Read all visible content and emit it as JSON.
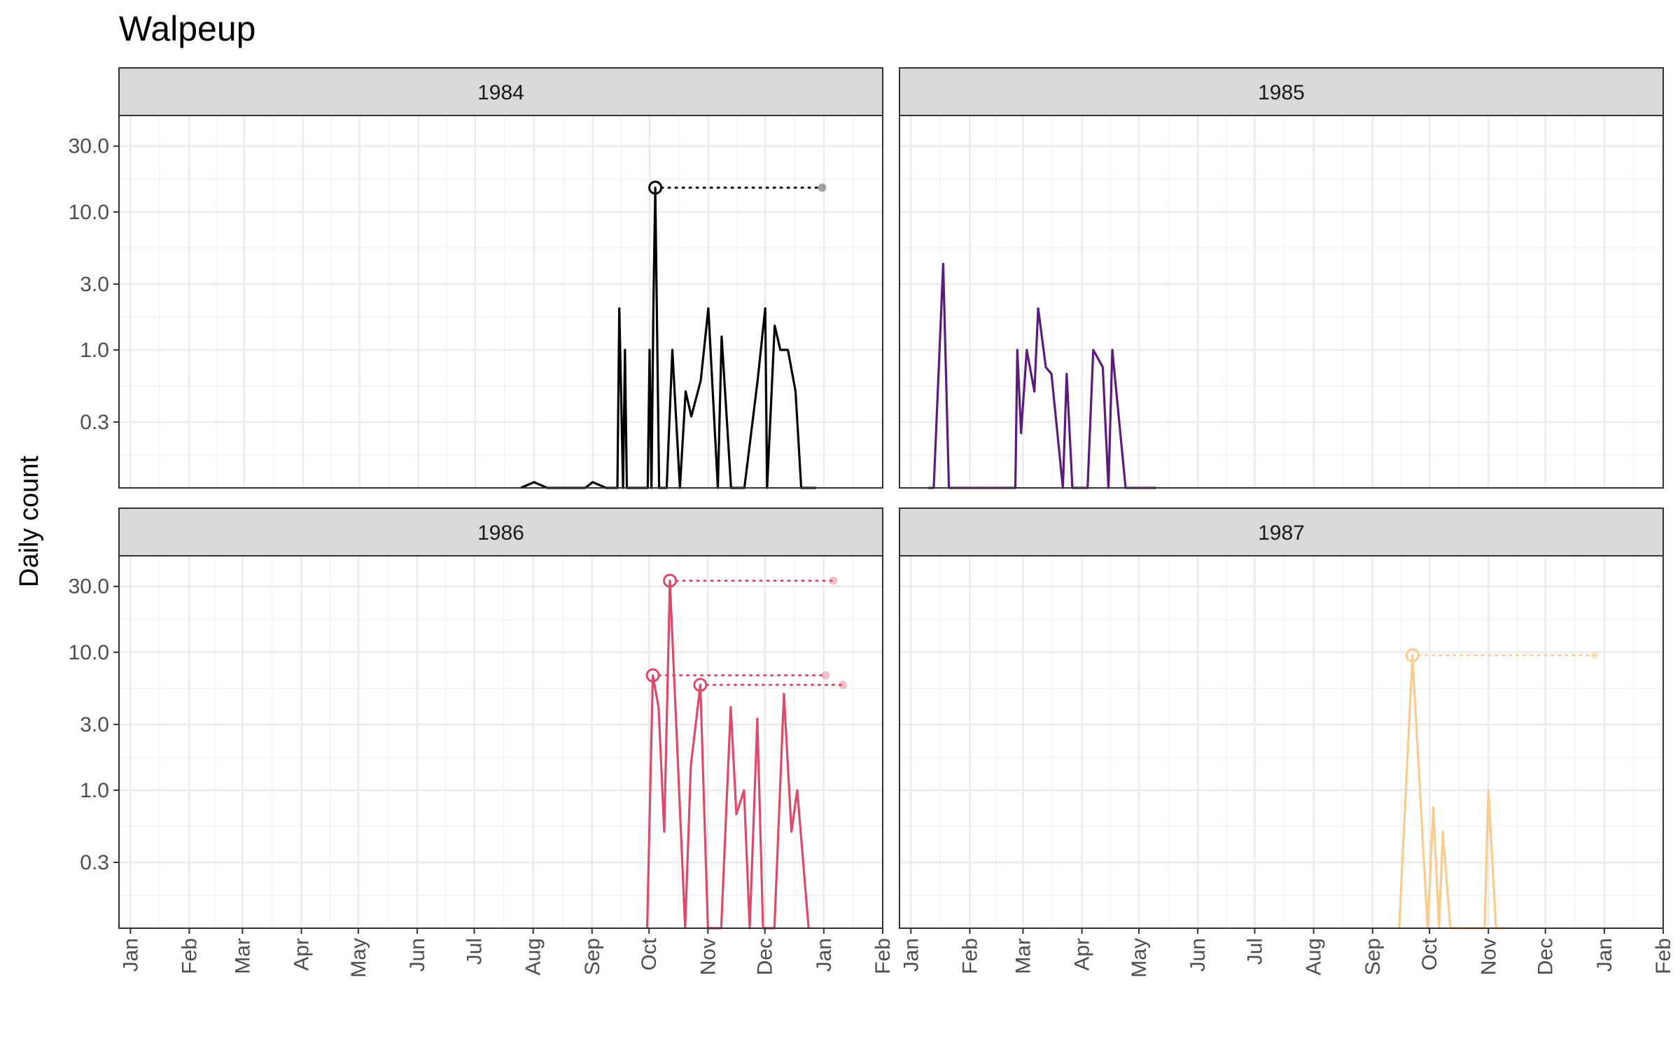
{
  "chart_data": {
    "type": "line",
    "title": "Walpeup",
    "ylabel": "Daily count",
    "xlabel": "",
    "y_scale": "log10",
    "y_range": [
      0.1,
      50
    ],
    "y_ticks": [
      "0.3",
      "1.0",
      "3.0",
      "10.0",
      "30.0"
    ],
    "y_tick_values": [
      0.3,
      1.0,
      3.0,
      10.0,
      30.0
    ],
    "x_range": [
      "Dec 26",
      "Feb 1 (next year)"
    ],
    "x_ticks": [
      "Jan",
      "Feb",
      "Mar",
      "Apr",
      "May",
      "Jun",
      "Jul",
      "Aug",
      "Sep",
      "Oct",
      "Nov",
      "Dec",
      "Jan",
      "Feb"
    ],
    "grid": true,
    "legend": "none",
    "panels": [
      {
        "name": "1984",
        "color": "#000000",
        "series": [
          {
            "date": "1984-07-25",
            "value": 0.0
          },
          {
            "date": "1984-08-01",
            "value": 0.11
          },
          {
            "date": "1984-08-08",
            "value": 0.0
          },
          {
            "date": "1984-08-28",
            "value": 0.0
          },
          {
            "date": "1984-09-01",
            "value": 0.11
          },
          {
            "date": "1984-09-08",
            "value": 0.0
          },
          {
            "date": "1984-09-14",
            "value": 0.0
          },
          {
            "date": "1984-09-15",
            "value": 2.0
          },
          {
            "date": "1984-09-17",
            "value": 0.0
          },
          {
            "date": "1984-09-18",
            "value": 1.0
          },
          {
            "date": "1984-09-19",
            "value": 0.0
          },
          {
            "date": "1984-09-30",
            "value": 0.0
          },
          {
            "date": "1984-10-01",
            "value": 1.0
          },
          {
            "date": "1984-10-02",
            "value": 0.0
          },
          {
            "date": "1984-10-03",
            "value": 2.0
          },
          {
            "date": "1984-10-04",
            "value": 15.0
          },
          {
            "date": "1984-10-06",
            "value": 0.0
          },
          {
            "date": "1984-10-10",
            "value": 0.0
          },
          {
            "date": "1984-10-13",
            "value": 1.0
          },
          {
            "date": "1984-10-17",
            "value": 0.0
          },
          {
            "date": "1984-10-20",
            "value": 0.5
          },
          {
            "date": "1984-10-23",
            "value": 0.33
          },
          {
            "date": "1984-10-28",
            "value": 0.6
          },
          {
            "date": "1984-11-01",
            "value": 2.0
          },
          {
            "date": "1984-11-06",
            "value": 0.0
          },
          {
            "date": "1984-11-08",
            "value": 1.25
          },
          {
            "date": "1984-11-13",
            "value": 0.0
          },
          {
            "date": "1984-11-20",
            "value": 0.0
          },
          {
            "date": "1984-11-27",
            "value": 0.6
          },
          {
            "date": "1984-12-01",
            "value": 2.0
          },
          {
            "date": "1984-12-02",
            "value": 0.0
          },
          {
            "date": "1984-12-06",
            "value": 1.5
          },
          {
            "date": "1984-12-09",
            "value": 1.0
          },
          {
            "date": "1984-12-13",
            "value": 1.0
          },
          {
            "date": "1984-12-17",
            "value": 0.5
          },
          {
            "date": "1984-12-20",
            "value": 0.0
          },
          {
            "date": "1984-12-28",
            "value": 0.0
          }
        ],
        "peaks": [
          {
            "date": "1984-10-04",
            "value": 15.0,
            "end_date": "1984-12-31"
          }
        ]
      },
      {
        "name": "1985",
        "color": "#5c1a7a",
        "series": [
          {
            "date": "1985-01-10",
            "value": 0.0
          },
          {
            "date": "1985-01-13",
            "value": 0.0
          },
          {
            "date": "1985-01-18",
            "value": 4.2
          },
          {
            "date": "1985-01-21",
            "value": 0.0
          },
          {
            "date": "1985-02-25",
            "value": 0.0
          },
          {
            "date": "1985-02-26",
            "value": 1.0
          },
          {
            "date": "1985-02-28",
            "value": 0.25
          },
          {
            "date": "1985-03-03",
            "value": 1.0
          },
          {
            "date": "1985-03-07",
            "value": 0.5
          },
          {
            "date": "1985-03-09",
            "value": 2.0
          },
          {
            "date": "1985-03-13",
            "value": 0.75
          },
          {
            "date": "1985-03-16",
            "value": 0.67
          },
          {
            "date": "1985-03-22",
            "value": 0.0
          },
          {
            "date": "1985-03-24",
            "value": 0.67
          },
          {
            "date": "1985-03-27",
            "value": 0.0
          },
          {
            "date": "1985-04-04",
            "value": 0.0
          },
          {
            "date": "1985-04-07",
            "value": 1.0
          },
          {
            "date": "1985-04-12",
            "value": 0.75
          },
          {
            "date": "1985-04-15",
            "value": 0.0
          },
          {
            "date": "1985-04-17",
            "value": 1.0
          },
          {
            "date": "1985-04-24",
            "value": 0.0
          },
          {
            "date": "1985-05-10",
            "value": 0.0
          }
        ],
        "peaks": []
      },
      {
        "name": "1986",
        "color": "#dc4a6b",
        "series": [
          {
            "date": "1986-09-30",
            "value": 0.0
          },
          {
            "date": "1986-10-03",
            "value": 6.8
          },
          {
            "date": "1986-10-06",
            "value": 4.0
          },
          {
            "date": "1986-10-09",
            "value": 0.5
          },
          {
            "date": "1986-10-12",
            "value": 33.0
          },
          {
            "date": "1986-10-20",
            "value": 0.0
          },
          {
            "date": "1986-10-23",
            "value": 1.5
          },
          {
            "date": "1986-10-28",
            "value": 5.8
          },
          {
            "date": "1986-11-01",
            "value": 0.0
          },
          {
            "date": "1986-11-08",
            "value": 0.0
          },
          {
            "date": "1986-11-13",
            "value": 4.0
          },
          {
            "date": "1986-11-16",
            "value": 0.67
          },
          {
            "date": "1986-11-20",
            "value": 1.0
          },
          {
            "date": "1986-11-23",
            "value": 0.0
          },
          {
            "date": "1986-11-27",
            "value": 3.3
          },
          {
            "date": "1986-11-30",
            "value": 0.0
          },
          {
            "date": "1986-12-06",
            "value": 0.0
          },
          {
            "date": "1986-12-11",
            "value": 5.0
          },
          {
            "date": "1986-12-15",
            "value": 0.5
          },
          {
            "date": "1986-12-18",
            "value": 1.0
          },
          {
            "date": "1986-12-24",
            "value": 0.0
          }
        ],
        "peaks": [
          {
            "date": "1986-10-12",
            "value": 33.0,
            "end_date": "1987-01-06"
          },
          {
            "date": "1986-10-03",
            "value": 6.8,
            "end_date": "1987-01-02"
          },
          {
            "date": "1986-10-28",
            "value": 5.8,
            "end_date": "1987-01-11"
          }
        ]
      },
      {
        "name": "1987",
        "color": "#f9cb8f",
        "series": [
          {
            "date": "1987-09-15",
            "value": 0.0
          },
          {
            "date": "1987-09-22",
            "value": 9.5
          },
          {
            "date": "1987-09-30",
            "value": 0.0
          },
          {
            "date": "1987-10-03",
            "value": 0.75
          },
          {
            "date": "1987-10-06",
            "value": 0.0
          },
          {
            "date": "1987-10-08",
            "value": 0.5
          },
          {
            "date": "1987-10-12",
            "value": 0.0
          },
          {
            "date": "1987-10-30",
            "value": 0.0
          },
          {
            "date": "1987-11-01",
            "value": 1.0
          },
          {
            "date": "1987-11-05",
            "value": 0.0
          },
          {
            "date": "1987-11-10",
            "value": 0.0
          }
        ],
        "peaks": [
          {
            "date": "1987-09-22",
            "value": 9.5,
            "end_date": "1987-12-27"
          }
        ]
      }
    ]
  }
}
